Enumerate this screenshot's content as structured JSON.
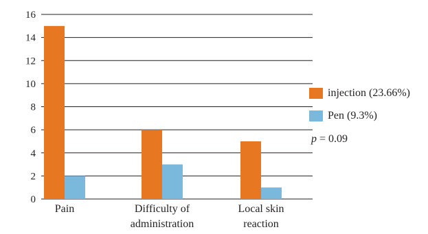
{
  "chart_data": {
    "type": "bar",
    "title": "",
    "xlabel": "",
    "ylabel": "",
    "categories": [
      [
        "Pain"
      ],
      [
        "Difficulty of",
        "administration"
      ],
      [
        "Local skin",
        "reaction"
      ]
    ],
    "series": [
      {
        "name": "injection (23.66%)",
        "color": "#e87722",
        "values": [
          15,
          6,
          5
        ]
      },
      {
        "name": "Pen (9.3%)",
        "color": "#7ab8dc",
        "values": [
          2,
          3,
          1
        ]
      }
    ],
    "ylim": [
      0,
      16
    ],
    "yticks": [
      0,
      2,
      4,
      6,
      8,
      10,
      12,
      14,
      16
    ],
    "grid": true,
    "legend_position": "right",
    "annotation": {
      "symbol": "p",
      "text": " = 0.09"
    }
  }
}
